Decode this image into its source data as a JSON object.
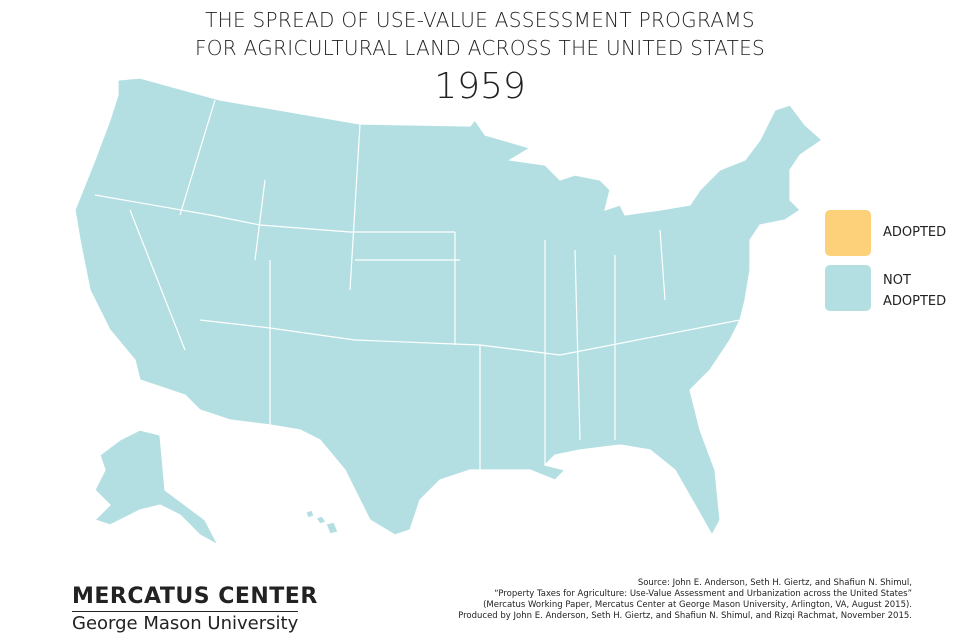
{
  "title": [
    "THE SPREAD OF USE-VALUE ASSESSMENT PROGRAMS",
    "FOR AGRICULTURAL LAND ACROSS THE UNITED STATES"
  ],
  "year": "1959",
  "legend": [
    {
      "label": "ADOPTED",
      "color": "#fdd07a"
    },
    {
      "label": "NOT ADOPTED",
      "color": "#b3dfe2"
    }
  ],
  "map": {
    "fill_legend_index": 1
  },
  "source": [
    "Source: John E. Anderson, Seth H. Giertz, and Shafiun N. Shimul,",
    "“Property Taxes for Agriculture: Use-Value Assessment and Urbanization across the United States”",
    "(Mercatus Working Paper, Mercatus Center at George Mason University, Arlington, VA, August 2015).",
    "Produced by John E. Anderson, Seth H. Giertz, and Shafiun N. Shimul, and Rizqi Rachmat, November 2015."
  ],
  "logo": {
    "name": "MERCATUS CENTER",
    "university": "George Mason University"
  }
}
